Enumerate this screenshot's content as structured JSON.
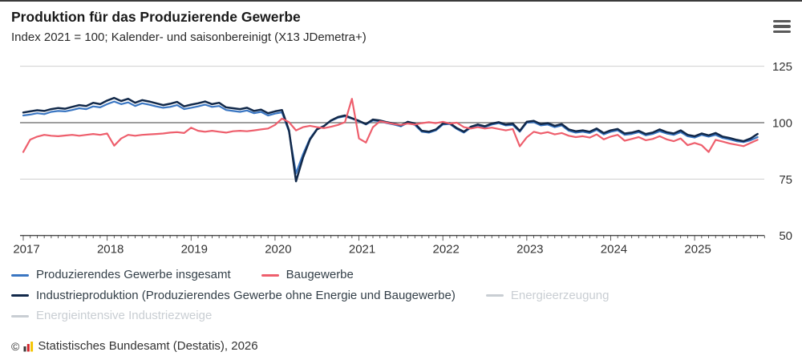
{
  "header": {
    "title": "Produktion für das Produzierende Gewerbe",
    "subtitle": "Index 2021 = 100; Kalender- und saisonbereinigt (X13 JDemetra+)"
  },
  "colors": {
    "accent_blue": "#3a76c2",
    "accent_navy": "#12294a",
    "accent_red": "#ee5f6d",
    "disabled_gray": "#c9ced3",
    "gridline_light": "#cfcfcf",
    "gridline_ref": "#7f7f7f",
    "axis": "#4a4a4a",
    "tick_label": "#333333"
  },
  "chart_data": {
    "type": "line",
    "title": "Produktion für das Produzierende Gewerbe",
    "subtitle": "Index 2021 = 100; Kalender- und saisonbereinigt (X13 JDemetra+)",
    "x_start": "2017-01",
    "x_end": "2025-10",
    "x_unit": "month",
    "x_tick_years": [
      "2017",
      "2018",
      "2019",
      "2020",
      "2021",
      "2022",
      "2023",
      "2024",
      "2025"
    ],
    "y_ticks": [
      50,
      75,
      100,
      125
    ],
    "ylim": [
      50,
      135
    ],
    "y_axis_side": "right",
    "reference_line": 100,
    "grid": "horizontal",
    "legend_position": "bottom",
    "series": [
      {
        "name": "Produzierendes Gewerbe insgesamt",
        "color": "#3a76c2",
        "visible": true,
        "values": [
          103.2,
          103.6,
          104.2,
          103.8,
          104.8,
          105.2,
          105.0,
          105.6,
          106.4,
          106.0,
          107.2,
          106.8,
          108.2,
          109.4,
          108.2,
          109.0,
          107.4,
          108.6,
          108.0,
          107.2,
          106.6,
          107.0,
          107.8,
          106.0,
          106.6,
          107.2,
          108.0,
          107.0,
          107.4,
          105.6,
          105.2,
          104.8,
          105.4,
          104.2,
          104.8,
          103.2,
          104.0,
          104.6,
          96.0,
          77.5,
          86.0,
          93.0,
          97.2,
          98.6,
          100.8,
          102.2,
          102.8,
          101.8,
          100.6,
          99.2,
          101.0,
          100.6,
          99.8,
          99.2,
          98.4,
          100.0,
          99.0,
          96.0,
          95.6,
          96.6,
          99.2,
          99.4,
          97.2,
          95.6,
          97.8,
          98.8,
          98.0,
          99.2,
          99.8,
          98.8,
          99.0,
          96.0,
          100.0,
          100.2,
          98.8,
          99.2,
          98.0,
          98.8,
          96.4,
          95.6,
          96.0,
          95.4,
          96.8,
          94.8,
          96.0,
          96.6,
          94.6,
          95.0,
          95.8,
          94.4,
          95.0,
          96.2,
          95.2,
          94.6,
          95.8,
          94.0,
          93.4,
          94.6,
          93.8,
          94.6,
          93.2,
          92.6,
          91.8,
          91.4,
          92.2,
          93.6
        ]
      },
      {
        "name": "Industrieproduktion (Produzierendes Gewerbe ohne Energie und Baugewerbe)",
        "color": "#12294a",
        "visible": true,
        "values": [
          104.5,
          105.0,
          105.5,
          105.2,
          106.0,
          106.5,
          106.2,
          107.0,
          107.8,
          107.4,
          108.8,
          108.2,
          109.8,
          111.0,
          109.6,
          110.6,
          108.8,
          110.0,
          109.4,
          108.6,
          107.8,
          108.4,
          109.2,
          107.2,
          108.0,
          108.6,
          109.4,
          108.2,
          108.8,
          106.8,
          106.4,
          106.0,
          106.6,
          105.2,
          105.8,
          104.2,
          105.0,
          105.6,
          96.5,
          74.0,
          84.5,
          92.5,
          97.0,
          98.5,
          101.0,
          102.5,
          103.2,
          102.0,
          100.8,
          99.4,
          101.4,
          101.0,
          100.2,
          99.6,
          98.8,
          100.4,
          99.6,
          96.4,
          96.0,
          97.0,
          99.6,
          99.8,
          97.6,
          96.0,
          98.2,
          99.2,
          98.4,
          99.6,
          100.2,
          99.2,
          99.6,
          96.4,
          100.4,
          100.8,
          99.4,
          99.8,
          98.6,
          99.4,
          97.0,
          96.2,
          96.6,
          96.0,
          97.4,
          95.4,
          96.6,
          97.2,
          95.2,
          95.6,
          96.4,
          95.0,
          95.6,
          97.0,
          95.8,
          95.2,
          96.6,
          94.6,
          94.0,
          95.2,
          94.4,
          95.4,
          93.8,
          93.2,
          92.4,
          91.8,
          93.0,
          95.0
        ]
      },
      {
        "name": "Baugewerbe",
        "color": "#ee5f6d",
        "visible": true,
        "values": [
          87.0,
          92.5,
          93.8,
          94.6,
          94.2,
          94.0,
          94.3,
          94.6,
          94.2,
          94.6,
          95.0,
          94.6,
          95.2,
          89.8,
          93.0,
          94.6,
          94.2,
          94.6,
          94.8,
          95.0,
          95.2,
          95.6,
          95.8,
          95.4,
          97.8,
          96.4,
          96.0,
          96.4,
          96.0,
          95.6,
          96.2,
          96.4,
          96.2,
          96.6,
          97.0,
          97.4,
          99.0,
          101.8,
          100.2,
          96.6,
          98.0,
          98.6,
          98.0,
          97.6,
          98.2,
          99.0,
          100.2,
          110.6,
          93.0,
          91.2,
          98.0,
          100.6,
          100.0,
          99.4,
          99.0,
          99.6,
          99.2,
          99.8,
          100.2,
          99.8,
          100.4,
          99.6,
          100.0,
          98.0,
          97.4,
          98.0,
          97.4,
          97.8,
          97.2,
          96.6,
          97.2,
          89.5,
          93.5,
          96.0,
          95.2,
          95.8,
          94.8,
          95.4,
          94.2,
          93.6,
          94.0,
          93.4,
          94.8,
          92.6,
          93.8,
          94.6,
          92.0,
          92.8,
          93.6,
          92.2,
          92.8,
          94.0,
          92.6,
          91.8,
          93.0,
          90.0,
          91.0,
          90.0,
          87.0,
          92.4,
          91.6,
          90.8,
          90.2,
          89.6,
          91.0,
          92.4
        ]
      },
      {
        "name": "Energieerzeugung",
        "color": "#c9ced3",
        "visible": false
      },
      {
        "name": "Energieintensive Industriezweige",
        "color": "#c9ced3",
        "visible": false
      }
    ]
  },
  "legend": {
    "items": [
      {
        "label": "Produzierendes Gewerbe insgesamt",
        "color": "#3a76c2",
        "enabled": true
      },
      {
        "label": "Baugewerbe",
        "color": "#ee5f6d",
        "enabled": true
      },
      {
        "label": "Industrieproduktion (Produzierendes Gewerbe ohne Energie und Baugewerbe)",
        "color": "#12294a",
        "enabled": true
      },
      {
        "label": "Energieerzeugung",
        "color": "#c9ced3",
        "enabled": false
      },
      {
        "label": "Energieintensive Industriezweige",
        "color": "#c9ced3",
        "enabled": false
      }
    ]
  },
  "footer": {
    "copyright": "©",
    "source_text": "Statistisches Bundesamt (Destatis), 2026",
    "logo": "destatis-bar-chart-icon"
  }
}
